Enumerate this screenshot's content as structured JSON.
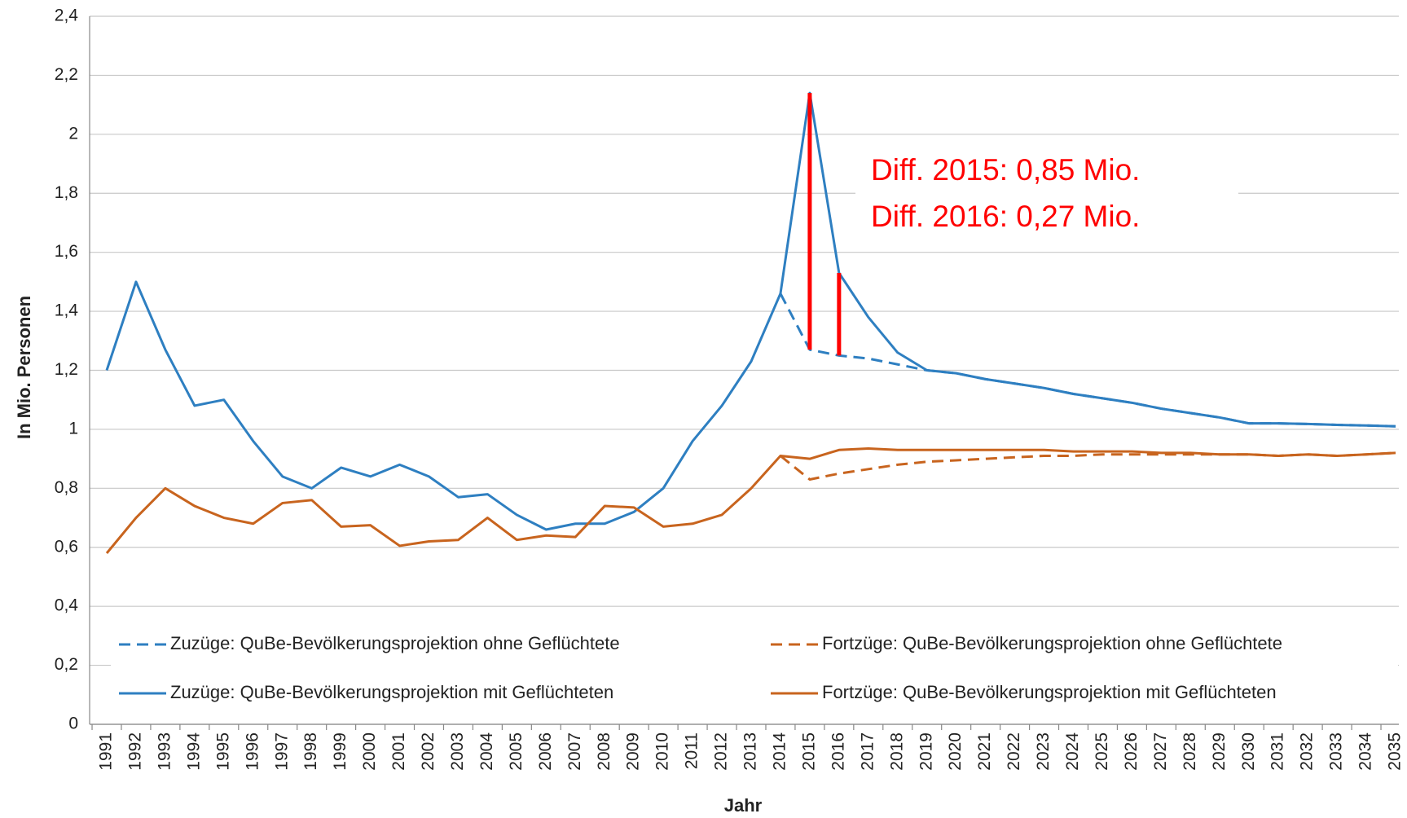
{
  "chart_data": {
    "type": "line",
    "y_label": "In Mio. Personen",
    "x_label": "Jahr",
    "categories": [
      "1991",
      "1992",
      "1993",
      "1994",
      "1995",
      "1996",
      "1997",
      "1998",
      "1999",
      "2000",
      "2001",
      "2002",
      "2003",
      "2004",
      "2005",
      "2006",
      "2007",
      "2008",
      "2009",
      "2010",
      "2011",
      "2012",
      "2013",
      "2014",
      "2015",
      "2016",
      "2017",
      "2018",
      "2019",
      "2020",
      "2021",
      "2022",
      "2023",
      "2024",
      "2025",
      "2026",
      "2027",
      "2028",
      "2029",
      "2030",
      "2031",
      "2032",
      "2033",
      "2034",
      "2035"
    ],
    "series": [
      {
        "name": "Zuzüge: QuBe-Bevölkerungsprojektion ohne Geflüchtete",
        "color": "#2e7fc1",
        "dashed": true,
        "values": [
          null,
          null,
          null,
          null,
          null,
          null,
          null,
          null,
          null,
          null,
          null,
          null,
          null,
          null,
          null,
          null,
          null,
          null,
          null,
          null,
          null,
          null,
          null,
          1.46,
          1.27,
          1.25,
          1.24,
          1.22,
          1.2,
          1.19,
          1.17,
          1.155,
          1.14,
          1.12,
          1.105,
          1.09,
          1.07,
          1.055,
          1.04,
          1.02,
          1.02,
          1.018,
          1.015,
          1.013,
          1.01
        ]
      },
      {
        "name": "Fortzüge: QuBe-Bevölkerungsprojektion ohne Geflüchtete",
        "color": "#c8641e",
        "dashed": true,
        "values": [
          null,
          null,
          null,
          null,
          null,
          null,
          null,
          null,
          null,
          null,
          null,
          null,
          null,
          null,
          null,
          null,
          null,
          null,
          null,
          null,
          null,
          null,
          null,
          0.91,
          0.83,
          0.85,
          0.865,
          0.88,
          0.89,
          0.895,
          0.9,
          0.905,
          0.91,
          0.91,
          0.915,
          0.915,
          0.915,
          0.915,
          0.915,
          0.915,
          0.91,
          0.915,
          0.91,
          0.915,
          0.92
        ]
      },
      {
        "name": "Zuzüge: QuBe-Bevölkerungsprojektion mit Geflüchteten",
        "color": "#2e7fc1",
        "dashed": false,
        "values": [
          1.2,
          1.5,
          1.27,
          1.08,
          1.1,
          0.96,
          0.84,
          0.8,
          0.87,
          0.84,
          0.88,
          0.84,
          0.77,
          0.78,
          0.71,
          0.66,
          0.68,
          0.68,
          0.72,
          0.8,
          0.96,
          1.08,
          1.23,
          1.46,
          2.14,
          1.53,
          1.38,
          1.26,
          1.2,
          1.19,
          1.17,
          1.155,
          1.14,
          1.12,
          1.105,
          1.09,
          1.07,
          1.055,
          1.04,
          1.02,
          1.02,
          1.018,
          1.015,
          1.013,
          1.01
        ]
      },
      {
        "name": "Fortzüge: QuBe-Bevölkerungsprojektion mit Geflüchteten",
        "color": "#c8641e",
        "dashed": false,
        "values": [
          0.58,
          0.7,
          0.8,
          0.74,
          0.7,
          0.68,
          0.75,
          0.76,
          0.67,
          0.675,
          0.605,
          0.62,
          0.625,
          0.7,
          0.625,
          0.64,
          0.635,
          0.74,
          0.735,
          0.67,
          0.68,
          0.71,
          0.8,
          0.91,
          0.9,
          0.93,
          0.935,
          0.93,
          0.93,
          0.93,
          0.93,
          0.93,
          0.93,
          0.925,
          0.925,
          0.925,
          0.92,
          0.92,
          0.915,
          0.915,
          0.91,
          0.915,
          0.91,
          0.915,
          0.92
        ]
      }
    ],
    "ylim": [
      0,
      2.4
    ],
    "yticks": [
      0,
      {
        "value": 0.2,
        "label": "0,2"
      },
      {
        "value": 0.4,
        "label": "0,4"
      },
      {
        "value": 0.6,
        "label": "0,6"
      },
      {
        "value": 0.8,
        "label": "0,8"
      },
      1,
      {
        "value": 1.2,
        "label": "1,2"
      },
      {
        "value": 1.4,
        "label": "1,4"
      },
      {
        "value": 1.6,
        "label": "1,6"
      },
      {
        "value": 1.8,
        "label": "1,8"
      },
      2,
      {
        "value": 2.2,
        "label": "2,2"
      },
      {
        "value": 2.4,
        "label": "2,4"
      }
    ],
    "grid": true,
    "legend": "bottom",
    "annotations": [
      {
        "text": "Diff. 2015: 0,85 Mio.",
        "color": "#ff0000"
      },
      {
        "text": "Diff. 2016: 0,27 Mio.",
        "color": "#ff0000"
      }
    ]
  }
}
